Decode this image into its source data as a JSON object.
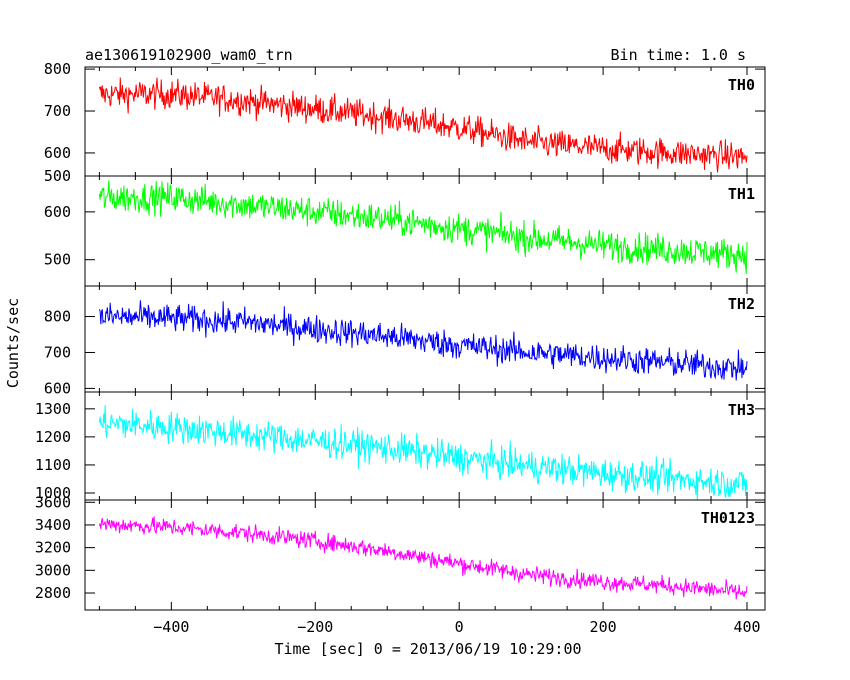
{
  "header": {
    "title": "ae130619102900_wam0_trn",
    "bin_time": "Bin time: 1.0 s"
  },
  "axes": {
    "xlabel": "Time [sec] 0 = 2013/06/19 10:29:00",
    "ylabel": "Counts/sec"
  },
  "chart_data": {
    "type": "line",
    "title": "ae130619102900_wam0_trn",
    "subtitle": "Bin time: 1.0 s",
    "xlabel": "Time [sec] 0 = 2013/06/19 10:29:00",
    "ylabel": "Counts/sec",
    "xlim": [
      -520,
      425
    ],
    "x_ticks": [
      -400,
      -200,
      0,
      200,
      400
    ],
    "x_tick_labels": [
      "−400",
      "−200",
      "0",
      "200",
      "400"
    ],
    "x_data_range": [
      -500,
      400
    ],
    "bin_time_s": 1.0,
    "panels": [
      {
        "name": "TH0",
        "color": "#ff0000",
        "ylim": [
          545,
          805
        ],
        "yticks": [
          600,
          700,
          800
        ],
        "ytick_labels": [
          "600",
          "700",
          "800"
        ],
        "top_tick_label": "500",
        "trend": [
          [
            -500,
            740
          ],
          [
            -400,
            740
          ],
          [
            -300,
            725
          ],
          [
            -200,
            705
          ],
          [
            -100,
            685
          ],
          [
            0,
            660
          ],
          [
            100,
            625
          ],
          [
            200,
            610
          ],
          [
            300,
            600
          ],
          [
            400,
            590
          ]
        ],
        "noise": 25
      },
      {
        "name": "TH1",
        "color": "#00ff00",
        "ylim": [
          445,
          675
        ],
        "yticks": [
          500,
          600
        ],
        "ytick_labels": [
          "500",
          "600"
        ],
        "trend": [
          [
            -500,
            630
          ],
          [
            -400,
            630
          ],
          [
            -300,
            615
          ],
          [
            -200,
            600
          ],
          [
            -100,
            585
          ],
          [
            0,
            565
          ],
          [
            100,
            545
          ],
          [
            200,
            530
          ],
          [
            300,
            520
          ],
          [
            400,
            510
          ]
        ],
        "noise": 23
      },
      {
        "name": "TH2",
        "color": "#0000ff",
        "ylim": [
          590,
          885
        ],
        "yticks": [
          600,
          700,
          800
        ],
        "ytick_labels": [
          "600",
          "700",
          "800"
        ],
        "trend": [
          [
            -500,
            800
          ],
          [
            -400,
            795
          ],
          [
            -300,
            785
          ],
          [
            -200,
            765
          ],
          [
            -100,
            745
          ],
          [
            0,
            720
          ],
          [
            100,
            700
          ],
          [
            200,
            685
          ],
          [
            300,
            670
          ],
          [
            400,
            655
          ]
        ],
        "noise": 28
      },
      {
        "name": "TH3",
        "color": "#00ffff",
        "ylim": [
          975,
          1360
        ],
        "yticks": [
          1000,
          1100,
          1200,
          1300
        ],
        "ytick_labels": [
          "1000",
          "1100",
          "1200",
          "1300"
        ],
        "trend": [
          [
            -500,
            1250
          ],
          [
            -400,
            1235
          ],
          [
            -300,
            1210
          ],
          [
            -200,
            1185
          ],
          [
            -100,
            1160
          ],
          [
            0,
            1125
          ],
          [
            100,
            1095
          ],
          [
            200,
            1070
          ],
          [
            300,
            1050
          ],
          [
            400,
            1030
          ]
        ],
        "noise": 40
      },
      {
        "name": "TH0123",
        "color": "#ff00ff",
        "ylim": [
          2650,
          3620
        ],
        "yticks": [
          2800,
          3000,
          3200,
          3400,
          3600
        ],
        "ytick_labels": [
          "2800",
          "3000",
          "3200",
          "3400",
          "3600"
        ],
        "trend": [
          [
            -500,
            3410
          ],
          [
            -400,
            3380
          ],
          [
            -300,
            3330
          ],
          [
            -200,
            3260
          ],
          [
            -100,
            3170
          ],
          [
            0,
            3060
          ],
          [
            100,
            2960
          ],
          [
            200,
            2900
          ],
          [
            300,
            2860
          ],
          [
            400,
            2800
          ]
        ],
        "noise": 55
      }
    ]
  }
}
